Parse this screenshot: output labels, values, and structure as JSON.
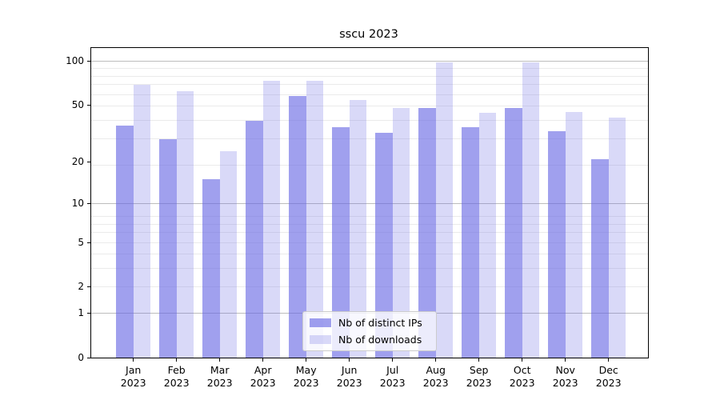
{
  "title": "sscu 2023",
  "chart_data": {
    "type": "bar",
    "title": "sscu 2023",
    "categories": [
      "Jan",
      "Feb",
      "Mar",
      "Apr",
      "May",
      "Jun",
      "Jul",
      "Aug",
      "Sep",
      "Oct",
      "Nov",
      "Dec"
    ],
    "category_year": "2023",
    "series": [
      {
        "name": "Nb of distinct IPs",
        "values": [
          36,
          29,
          15,
          39,
          58,
          35,
          32,
          48,
          35,
          48,
          33,
          21
        ],
        "color": "rgba(102,102,228,0.62)"
      },
      {
        "name": "Nb of downloads",
        "values": [
          69,
          62,
          24,
          73,
          73,
          54,
          48,
          98,
          44,
          98,
          45,
          41
        ],
        "color": "rgba(102,102,228,0.25)"
      }
    ],
    "base_color": "#6666e4",
    "yscale": "log1p (position proportional to log10(value+1))",
    "yticks": [
      0,
      1,
      2,
      5,
      10,
      20,
      50,
      100
    ],
    "ytick_labels": [
      "0",
      "1",
      "2",
      "5",
      "10",
      "20",
      "50",
      "100"
    ],
    "ylim": [
      0,
      123
    ],
    "grid": true,
    "grid_major_values": [
      1,
      10,
      100
    ],
    "grid_minor_values": [
      2,
      3,
      4,
      5,
      6,
      7,
      8,
      19,
      29,
      39,
      49,
      59,
      69,
      79,
      89
    ],
    "grid_major_color": "#bdbdbd",
    "grid_minor_color": "#ebebeb",
    "legend_position": "inside bottom-center",
    "xlabel": "",
    "ylabel": ""
  }
}
